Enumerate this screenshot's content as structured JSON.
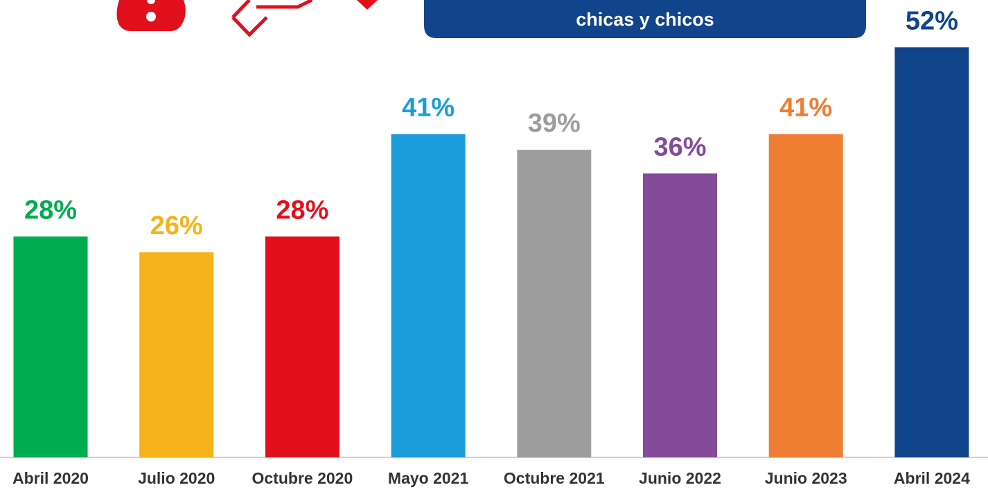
{
  "chart_data": {
    "type": "bar",
    "title": "chicas y chicos",
    "categories": [
      "Abril 2020",
      "Julio 2020",
      "Octubre 2020",
      "Mayo 2021",
      "Octubre 2021",
      "Junio 2022",
      "Junio 2023",
      "Abril 2024"
    ],
    "values": [
      28,
      26,
      28,
      41,
      39,
      36,
      41,
      52
    ],
    "value_labels": [
      "28%",
      "26%",
      "28%",
      "41%",
      "39%",
      "36%",
      "41%",
      "52%"
    ],
    "colors": [
      "#00ac4e",
      "#f5b21a",
      "#e2101d",
      "#1b9cdb",
      "#9d9d9d",
      "#844b98",
      "#ee7d31",
      "#10448b"
    ],
    "ylim": [
      0,
      58
    ]
  }
}
